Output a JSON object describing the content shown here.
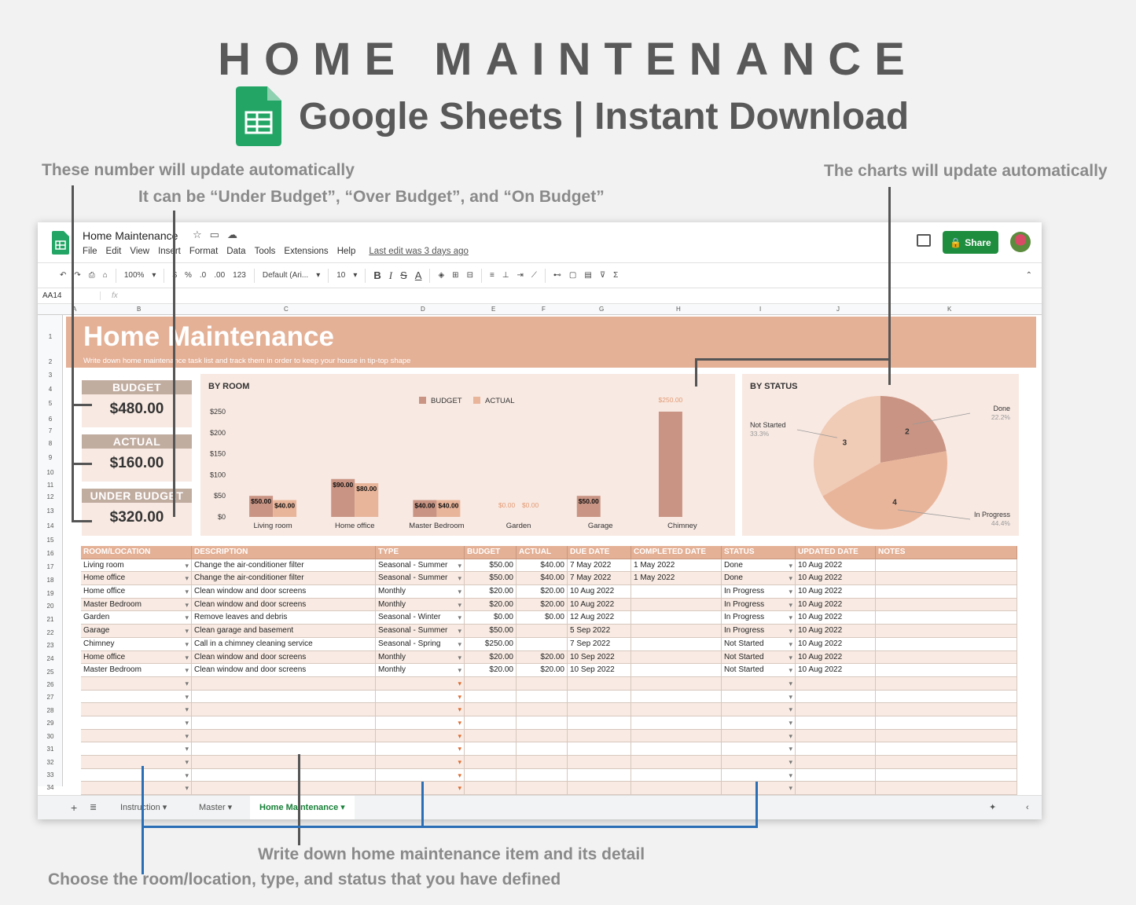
{
  "hero": {
    "title": "HOME MAINTENANCE",
    "subtitle": "Google Sheets | Instant Download"
  },
  "notes": {
    "numbers": "These number will update automatically",
    "budget_status": "It can be “Under Budget”, “Over Budget”, and “On Budget”",
    "charts": "The charts will update automatically",
    "write_down": "Write down home maintenance item and its detail",
    "choose": "Choose the room/location, type, and status that you have defined"
  },
  "app": {
    "doc_title": "Home Maintenance",
    "menu": [
      "File",
      "Edit",
      "View",
      "Insert",
      "Format",
      "Data",
      "Tools",
      "Extensions",
      "Help"
    ],
    "last_edit": "Last edit was 3 days ago",
    "share_label": "Share",
    "name_box": "AA14",
    "fx": "fx",
    "toolbar": {
      "zoom": "100%",
      "currency": "$",
      "percent": "%",
      "dec_less": ".0",
      "dec_more": ".00",
      "format_more": "123",
      "font": "Default (Ari...",
      "font_size": "10",
      "bold": "B",
      "italic": "I",
      "strike": "S",
      "text_color": "A"
    }
  },
  "columns": [
    "A",
    "B",
    "C",
    "D",
    "E",
    "F",
    "G",
    "H",
    "I",
    "J",
    "K"
  ],
  "rows": [
    "1",
    "2",
    "3",
    "4",
    "5",
    "6",
    "7",
    "8",
    "9",
    "10",
    "11",
    "12",
    "13",
    "14",
    "15",
    "16",
    "17",
    "18",
    "19",
    "20",
    "21",
    "22",
    "23",
    "24",
    "25",
    "26",
    "27",
    "28",
    "29",
    "30",
    "31",
    "32",
    "33",
    "34"
  ],
  "sheet": {
    "banner_title": "Home Maintenance",
    "banner_subtitle": "Write down home maintenance task list and track them in order to keep your house in tip-top shape",
    "budget_label": "BUDGET",
    "budget_value": "$480.00",
    "actual_label": "ACTUAL",
    "actual_value": "$160.00",
    "status_label": "UNDER BUDGET",
    "status_value": "$320.00"
  },
  "colors": {
    "budget": "#c99483",
    "actual": "#e9b59a",
    "header": "#e4b096",
    "panel": "#f8e9e2",
    "share": "#1e8e3e"
  },
  "chart_data": [
    {
      "type": "bar",
      "title": "BY ROOM",
      "categories": [
        "Living room",
        "Home office",
        "Master Bedroom",
        "Garden",
        "Garage",
        "Chimney"
      ],
      "series": [
        {
          "name": "BUDGET",
          "values": [
            50,
            90,
            40,
            0,
            50,
            250
          ],
          "labels": [
            "$50.00",
            "$90.00",
            "$40.00",
            "$0.00",
            "$50.00",
            "$250.00"
          ]
        },
        {
          "name": "ACTUAL",
          "values": [
            40,
            80,
            40,
            0,
            null,
            null
          ],
          "labels": [
            "$40.00",
            "$80.00",
            "$40.00",
            "$0.00",
            "",
            ""
          ]
        }
      ],
      "yticks": [
        "$0",
        "$50",
        "$100",
        "$150",
        "$200",
        "$250"
      ],
      "ylim": [
        0,
        250
      ],
      "legend": "top"
    },
    {
      "type": "pie",
      "title": "BY STATUS",
      "slices": [
        {
          "label": "Done",
          "value": 2,
          "percent": "22.2%",
          "color": "#c99483"
        },
        {
          "label": "In Progress",
          "value": 4,
          "percent": "44.4%",
          "color": "#e9b59a"
        },
        {
          "label": "Not Started",
          "value": 3,
          "percent": "33.3%",
          "color": "#f0cbb6"
        }
      ]
    }
  ],
  "table": {
    "headers": [
      "ROOM/LOCATION",
      "DESCRIPTION",
      "TYPE",
      "BUDGET",
      "ACTUAL",
      "DUE DATE",
      "COMPLETED DATE",
      "STATUS",
      "UPDATED DATE",
      "NOTES"
    ],
    "rows": [
      [
        "Living room",
        "Change the air-conditioner filter",
        "Seasonal - Summer",
        "$50.00",
        "$40.00",
        "7 May 2022",
        "1 May 2022",
        "Done",
        "10 Aug 2022",
        ""
      ],
      [
        "Home office",
        "Change the air-conditioner filter",
        "Seasonal - Summer",
        "$50.00",
        "$40.00",
        "7 May 2022",
        "1 May 2022",
        "Done",
        "10 Aug 2022",
        ""
      ],
      [
        "Home office",
        "Clean window and door screens",
        "Monthly",
        "$20.00",
        "$20.00",
        "10 Aug 2022",
        "",
        "In Progress",
        "10 Aug 2022",
        ""
      ],
      [
        "Master Bedroom",
        "Clean window and door screens",
        "Monthly",
        "$20.00",
        "$20.00",
        "10 Aug 2022",
        "",
        "In Progress",
        "10 Aug 2022",
        ""
      ],
      [
        "Garden",
        "Remove leaves and debris",
        "Seasonal - Winter",
        "$0.00",
        "$0.00",
        "12 Aug 2022",
        "",
        "In Progress",
        "10 Aug 2022",
        ""
      ],
      [
        "Garage",
        "Clean garage and basement",
        "Seasonal - Summer",
        "$50.00",
        "",
        "5 Sep 2022",
        "",
        "In Progress",
        "10 Aug 2022",
        ""
      ],
      [
        "Chimney",
        "Call in a chimney cleaning service",
        "Seasonal - Spring",
        "$250.00",
        "",
        "7 Sep 2022",
        "",
        "Not Started",
        "10 Aug 2022",
        ""
      ],
      [
        "Home office",
        "Clean window and door screens",
        "Monthly",
        "$20.00",
        "$20.00",
        "10 Sep 2022",
        "",
        "Not Started",
        "10 Aug 2022",
        ""
      ],
      [
        "Master Bedroom",
        "Clean window and door screens",
        "Monthly",
        "$20.00",
        "$20.00",
        "10 Sep 2022",
        "",
        "Not Started",
        "10 Aug 2022",
        ""
      ]
    ]
  },
  "tabs": [
    "Instruction",
    "Master",
    "Home Maintenance"
  ]
}
